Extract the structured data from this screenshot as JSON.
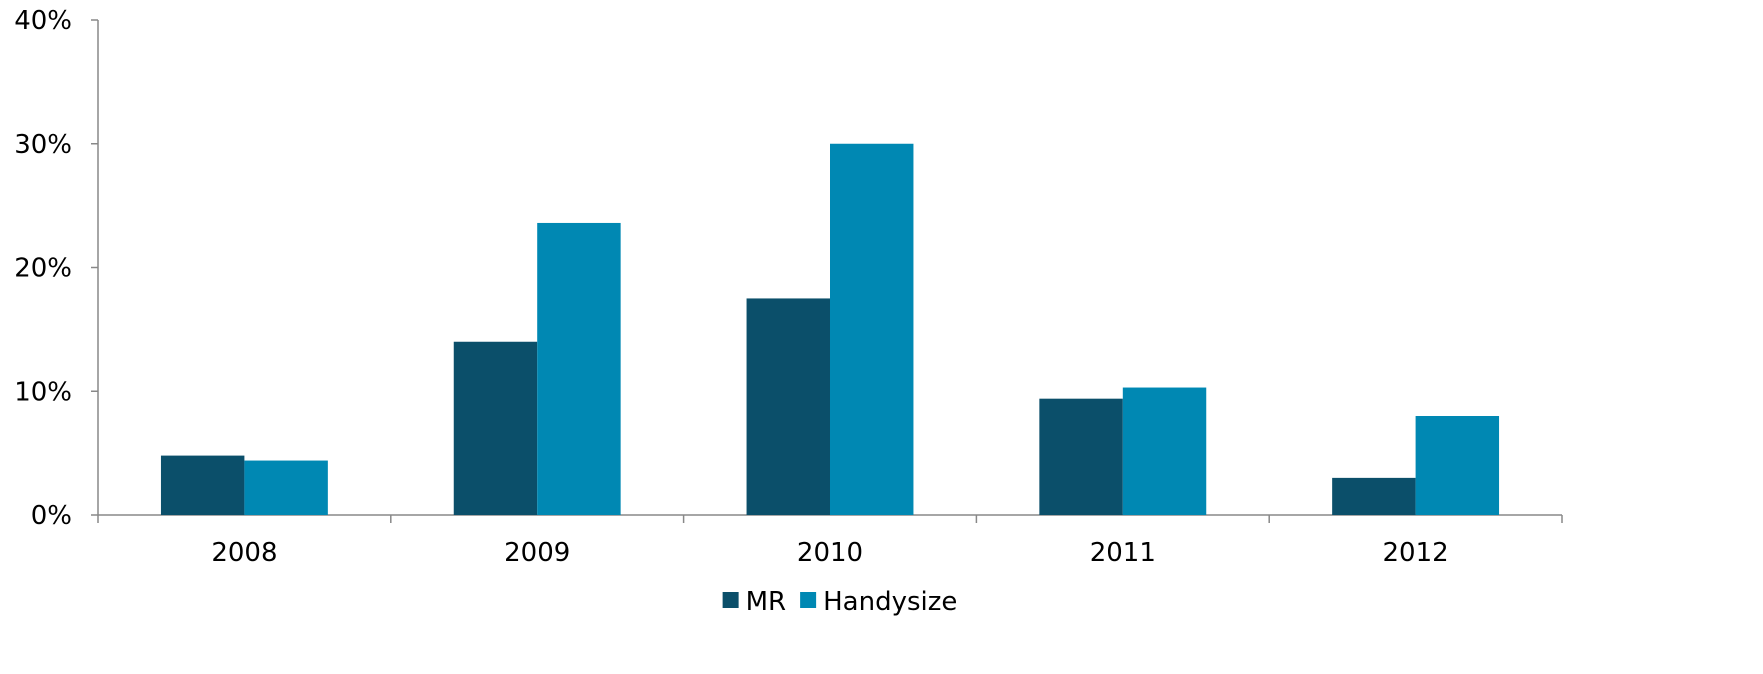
{
  "chart_data": {
    "type": "bar",
    "categories": [
      "2008",
      "2009",
      "2010",
      "2011",
      "2012"
    ],
    "series": [
      {
        "name": "MR",
        "color": "#0b4f6a",
        "values": [
          4.8,
          14.0,
          17.5,
          9.4,
          3.0
        ]
      },
      {
        "name": "Handysize",
        "color": "#0088b3",
        "values": [
          4.4,
          23.6,
          30.0,
          10.3,
          8.0
        ]
      }
    ],
    "ylim": [
      0,
      40
    ],
    "yticks": [
      0,
      10,
      20,
      30,
      40
    ],
    "ytick_labels": [
      "0%",
      "10%",
      "20%",
      "30%",
      "40%"
    ],
    "grid": false,
    "legend_position": "bottom-center",
    "title": "",
    "xlabel": "",
    "ylabel": ""
  }
}
